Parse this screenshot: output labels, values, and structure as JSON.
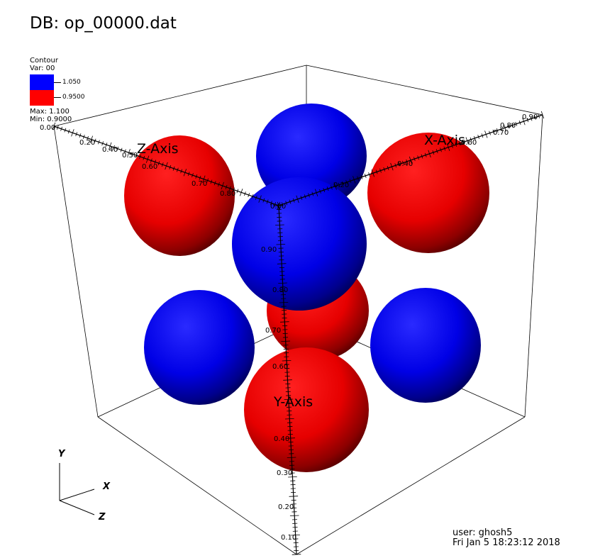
{
  "title": "DB: op_00000.dat",
  "legend": {
    "heading": "Contour",
    "var": "Var: 00",
    "levels": [
      {
        "label": "1.050",
        "color": "#0000ff"
      },
      {
        "label": "0.9500",
        "color": "#ff0000"
      }
    ],
    "max": "Max:  1.100",
    "min": "Min:  0.9000"
  },
  "axes": {
    "x_title": "X-Axis",
    "y_title": "Y-Axis",
    "z_title": "Z-Axis",
    "x_ticks": [
      "0.00",
      "0.20",
      "0.40",
      "0.60",
      "0.70",
      "0.80",
      "0.90"
    ],
    "y_ticks": [
      "0.90",
      "0.80",
      "0.70",
      "0.60",
      "0.40",
      "0.30",
      "0.20",
      "0.10"
    ],
    "z_ticks": [
      "0.00",
      "0.20",
      "0.40",
      "0.50",
      "0.60",
      "0.70",
      "0.80"
    ]
  },
  "triad": {
    "x": "X",
    "y": "Y",
    "z": "Z"
  },
  "footer": {
    "user": "user: ghosh5",
    "date": "Fri Jan  5 18:23:12 2018"
  },
  "colors": {
    "blue": "#0000ff",
    "red": "#ff0000",
    "background": "#ffffff"
  }
}
